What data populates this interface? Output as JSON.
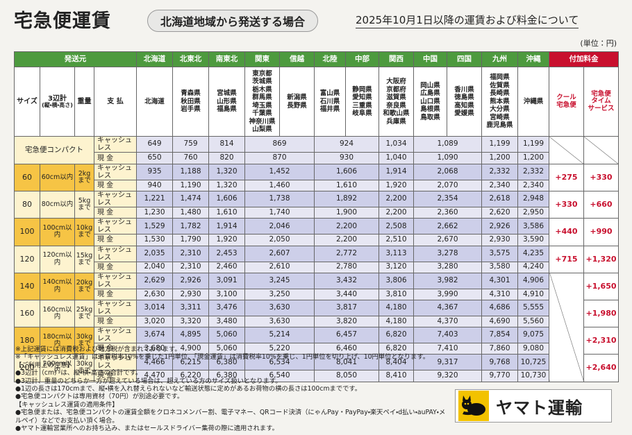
{
  "header": {
    "title": "宅急便運賃",
    "subtitle": "北海道地域から発送する場合",
    "notice": "2025年10月1日以降の運賃および料金について",
    "unit": "(単位：円)"
  },
  "table": {
    "origin_label": "発送元",
    "surcharge_label": "付加料金",
    "col_headers": {
      "size": "サイズ",
      "dims": "3辺計",
      "dims_note": "(縦・横・高さ)",
      "weight": "重量",
      "payment": "支 払"
    },
    "regions": [
      {
        "name": "北海道",
        "prefectures": [
          "北海道"
        ]
      },
      {
        "name": "北東北",
        "prefectures": [
          "青森県",
          "秋田県",
          "岩手県"
        ]
      },
      {
        "name": "南東北",
        "prefectures": [
          "宮城県",
          "山形県",
          "福島県"
        ]
      },
      {
        "name": "関東",
        "prefectures": [
          "東京都",
          "茨城県",
          "栃木県",
          "群馬県",
          "埼玉県",
          "千葉県",
          "神奈川県",
          "山梨県"
        ]
      },
      {
        "name": "信越",
        "prefectures": [
          "新潟県",
          "長野県"
        ]
      },
      {
        "name": "北陸",
        "prefectures": [
          "富山県",
          "石川県",
          "福井県"
        ]
      },
      {
        "name": "中部",
        "prefectures": [
          "静岡県",
          "愛知県",
          "三重県",
          "岐阜県"
        ]
      },
      {
        "name": "関西",
        "prefectures": [
          "大阪府",
          "京都府",
          "滋賀県",
          "奈良県",
          "和歌山県",
          "兵庫県"
        ]
      },
      {
        "name": "中国",
        "prefectures": [
          "岡山県",
          "広島県",
          "山口県",
          "島根県",
          "鳥取県"
        ]
      },
      {
        "name": "四国",
        "prefectures": [
          "香川県",
          "徳島県",
          "高知県",
          "愛媛県"
        ]
      },
      {
        "name": "九州",
        "prefectures": [
          "福岡県",
          "佐賀県",
          "長崎県",
          "熊本県",
          "大分県",
          "宮崎県",
          "鹿児島県"
        ]
      },
      {
        "name": "沖縄",
        "prefectures": [
          "沖縄県"
        ]
      }
    ],
    "surcharge_headers": [
      [
        "クール",
        "宅急便"
      ],
      [
        "宅急便",
        "タイム",
        "サービス"
      ]
    ],
    "compact": {
      "label": "宅急便コンパクト",
      "rows": [
        {
          "payment": "キャッシュレス",
          "values": [
            "649",
            "759",
            "814",
            "869",
            "924",
            "1,034",
            "1,089",
            "1,199",
            "1,199"
          ]
        },
        {
          "payment": "現 金",
          "values": [
            "650",
            "760",
            "820",
            "870",
            "930",
            "1,040",
            "1,090",
            "1,200",
            "1,200"
          ]
        }
      ]
    },
    "sizes": [
      {
        "size": "60",
        "dims": "60cm以内",
        "weight": "2kg",
        "weight_note": "まで",
        "cool": "+275",
        "time": "+330",
        "rows": [
          {
            "payment": "キャッシュレス",
            "values": [
              "935",
              "1,188",
              "1,320",
              "1,452",
              "1,606",
              "1,914",
              "2,068",
              "2,332",
              "2,332"
            ]
          },
          {
            "payment": "現 金",
            "values": [
              "940",
              "1,190",
              "1,320",
              "1,460",
              "1,610",
              "1,920",
              "2,070",
              "2,340",
              "2,340"
            ]
          }
        ]
      },
      {
        "size": "80",
        "dims": "80cm以内",
        "weight": "5kg",
        "weight_note": "まで",
        "cool": "+330",
        "time": "+660",
        "rows": [
          {
            "payment": "キャッシュレス",
            "values": [
              "1,221",
              "1,474",
              "1,606",
              "1,738",
              "1,892",
              "2,200",
              "2,354",
              "2,618",
              "2,948"
            ]
          },
          {
            "payment": "現 金",
            "values": [
              "1,230",
              "1,480",
              "1,610",
              "1,740",
              "1,900",
              "2,200",
              "2,360",
              "2,620",
              "2,950"
            ]
          }
        ]
      },
      {
        "size": "100",
        "dims": "100cm以内",
        "weight": "10kg",
        "weight_note": "まで",
        "cool": "+440",
        "time": "+990",
        "rows": [
          {
            "payment": "キャッシュレス",
            "values": [
              "1,529",
              "1,782",
              "1,914",
              "2,046",
              "2,200",
              "2,508",
              "2,662",
              "2,926",
              "3,586"
            ]
          },
          {
            "payment": "現 金",
            "values": [
              "1,530",
              "1,790",
              "1,920",
              "2,050",
              "2,200",
              "2,510",
              "2,670",
              "2,930",
              "3,590"
            ]
          }
        ]
      },
      {
        "size": "120",
        "dims": "120cm以内",
        "weight": "15kg",
        "weight_note": "まで",
        "cool": "+715",
        "time": "+1,320",
        "rows": [
          {
            "payment": "キャッシュレス",
            "values": [
              "2,035",
              "2,310",
              "2,453",
              "2,607",
              "2,772",
              "3,113",
              "3,278",
              "3,575",
              "4,235"
            ]
          },
          {
            "payment": "現 金",
            "values": [
              "2,040",
              "2,310",
              "2,460",
              "2,610",
              "2,780",
              "3,120",
              "3,280",
              "3,580",
              "4,240"
            ]
          }
        ]
      },
      {
        "size": "140",
        "dims": "140cm以内",
        "weight": "20kg",
        "weight_note": "まで",
        "time": "+1,650",
        "rows": [
          {
            "payment": "キャッシュレス",
            "values": [
              "2,629",
              "2,926",
              "3,091",
              "3,245",
              "3,432",
              "3,806",
              "3,982",
              "4,301",
              "4,906"
            ]
          },
          {
            "payment": "現 金",
            "values": [
              "2,630",
              "2,930",
              "3,100",
              "3,250",
              "3,440",
              "3,810",
              "3,990",
              "4,310",
              "4,910"
            ]
          }
        ]
      },
      {
        "size": "160",
        "dims": "160cm以内",
        "weight": "25kg",
        "weight_note": "まで",
        "time": "+1,980",
        "rows": [
          {
            "payment": "キャッシュレス",
            "values": [
              "3,014",
              "3,311",
              "3,476",
              "3,630",
              "3,817",
              "4,180",
              "4,367",
              "4,686",
              "5,555"
            ]
          },
          {
            "payment": "現 金",
            "values": [
              "3,020",
              "3,320",
              "3,480",
              "3,630",
              "3,820",
              "4,180",
              "4,370",
              "4,690",
              "5,560"
            ]
          }
        ]
      },
      {
        "size": "180",
        "dims": "180cm以内",
        "weight": "30kg",
        "weight_note": "まで",
        "time": "+2,310",
        "rows": [
          {
            "payment": "キャッシュレス",
            "values": [
              "3,674",
              "4,895",
              "5,060",
              "5,214",
              "6,457",
              "6,820",
              "7,403",
              "7,854",
              "9,075"
            ]
          },
          {
            "payment": "現 金",
            "values": [
              "3,680",
              "4,900",
              "5,060",
              "5,220",
              "6,460",
              "6,820",
              "7,410",
              "7,860",
              "9,080"
            ]
          }
        ]
      },
      {
        "size": "200",
        "dims": "200cm以内",
        "weight": "30kg",
        "weight_note": "まで",
        "time": "+2,640",
        "rows": [
          {
            "payment": "キャッシュレス",
            "values": [
              "4,466",
              "6,215",
              "6,380",
              "6,534",
              "8,041",
              "8,404",
              "9,317",
              "9,768",
              "10,725"
            ]
          },
          {
            "payment": "現 金",
            "values": [
              "4,470",
              "6,220",
              "6,380",
              "6,540",
              "8,050",
              "8,410",
              "9,320",
              "9,770",
              "10,730"
            ]
          }
        ]
      }
    ]
  },
  "notes": {
    "tax": "※上記運賃には消費税および地方税が含まれております。",
    "cashless_rule": "※「キャッシュレス運賃」は消費税率10%を乗じた1円単位、「現金運賃」は消費税率10%を乗じ、1円単位を切り上げ、10円単位となります。",
    "usage_title": "【ご利用上の注意】",
    "usage": [
      "●3辺計（cm）は、縦・横・高さの合計です。",
      "●3辺計、重量のどちらか一方が超えている場合は、超えている方のサイズ扱いとなります。",
      "●1辺の長さは170cmまで、縦・横を入れ替えられないなど輸送状態に定めがあるお荷物の横の長さは100cmまでです。",
      "●宅急便コンパクトは専用資材（70円）が別途必要です。"
    ],
    "cashless_title": "【キャッシュレス運賃の適用条件】",
    "cashless_conditions": [
      "●宅急便または、宅急便コンパクトの運賃全額をクロネコメンバー割、電子マネー、QRコード決済（にゃんPay・PayPay・楽天ペイ・d払い・auPAY・メルペイ）などでお支払い頂く場合。",
      "●ヤマト運輸営業所へのお持ち込み、またはセールスドライバー集荷の際に適用されます。"
    ]
  },
  "logo": "ヤマト運輸"
}
